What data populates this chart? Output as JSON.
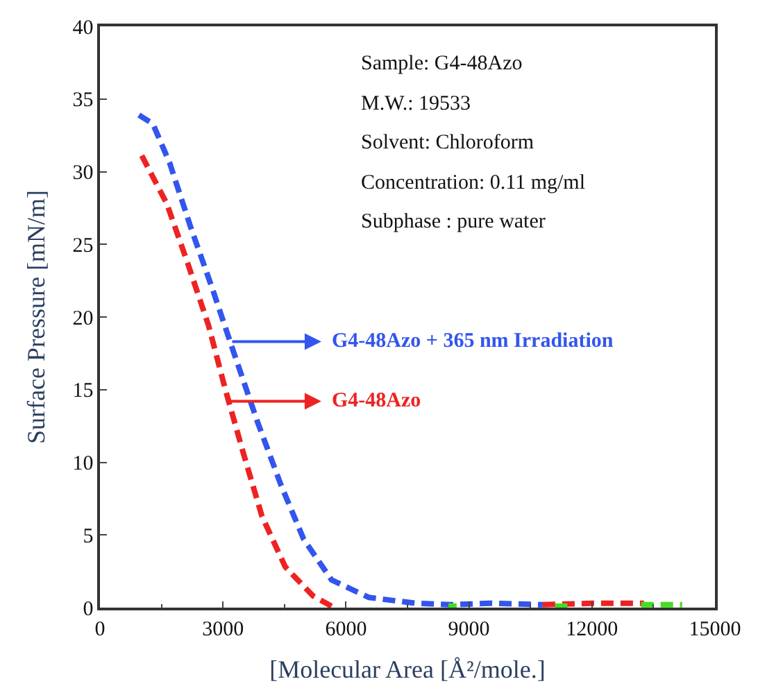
{
  "chart_data": {
    "type": "line",
    "xlabel": "[Molecular Area [Å²/mole.]",
    "ylabel": "Surface Pressure [mN/m]",
    "xlim": [
      0,
      15000
    ],
    "xticks": [
      0,
      3000,
      6000,
      9000,
      12000,
      15000
    ],
    "ylim": [
      0,
      40
    ],
    "yticks": [
      0,
      5,
      10,
      15,
      20,
      25,
      30,
      35,
      40
    ],
    "grid": false,
    "legend": "right",
    "marker": "none",
    "line_style": "dashed",
    "series": [
      {
        "name": "G4-48Azo + 365 nm Irradiation",
        "color": "#3355ee",
        "x": [
          950,
          1290,
          1700,
          2210,
          2760,
          3270,
          3840,
          4420,
          4970,
          5650,
          6560,
          7690,
          8560,
          9500,
          10800
        ],
        "values": [
          33.9,
          33.3,
          30.6,
          26.2,
          21.8,
          17.5,
          12.8,
          8.4,
          4.7,
          1.9,
          0.7,
          0.3,
          0.2,
          0.3,
          0.2
        ]
      },
      {
        "name": "G4-48Azo",
        "color": "#ee2222",
        "x": [
          1020,
          1630,
          2140,
          2650,
          3060,
          3500,
          3950,
          4520,
          5200,
          5710,
          8000,
          10800,
          12000,
          13270
        ],
        "values": [
          31.1,
          27.8,
          23.7,
          19.4,
          15.0,
          10.6,
          6.3,
          2.8,
          0.8,
          0.0,
          null,
          0.2,
          0.3,
          0.3
        ]
      },
      {
        "color": "#44dd22",
        "x": [
          8500,
          8700,
          9000,
          11100,
          11400,
          12000,
          13200,
          14200
        ],
        "values": [
          0.1,
          0.1,
          null,
          0.1,
          0.1,
          null,
          0.2,
          0.2
        ]
      }
    ],
    "annotations": [
      "Sample: G4-48Azo",
      "M.W.: 19533",
      "Solvent: Chloroform",
      "Concentration: 0.11 mg/ml",
      "Subphase : pure water"
    ]
  }
}
